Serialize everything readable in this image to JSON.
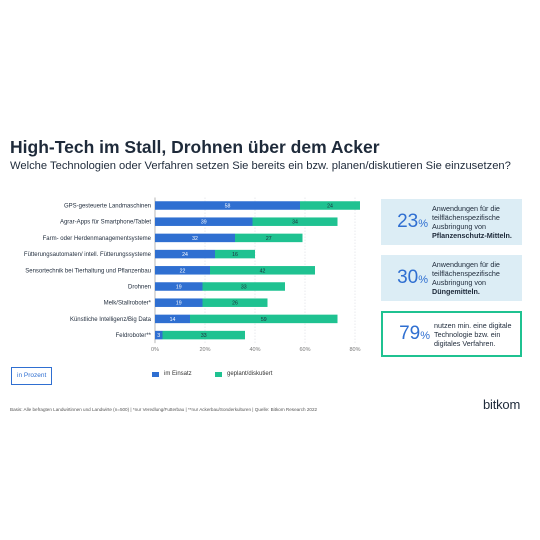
{
  "title": "High-Tech im Stall, Drohnen über dem Acker",
  "subtitle": "Welche Technologien oder Verfahren setzen Sie bereits ein bzw. planen/diskutieren Sie einzusetzen?",
  "unit_label": "in Prozent",
  "colors": {
    "in_einsatz": "#2f6fd1",
    "geplant": "#1fc291",
    "accent_text": "#2f6fd1",
    "box_fill": "#dcedf5"
  },
  "chart_data": {
    "type": "bar",
    "orientation": "horizontal",
    "stacked": true,
    "categories": [
      "GPS-gesteuerte Landmaschinen",
      "Agrar-Apps für Smartphone/Tablet",
      "Farm- oder Herdenmanagementsysteme",
      "Fütterungsautomaten/ intell. Fütterungssysteme",
      "Sensortechnik bei Tierhaltung und Pflanzenbau",
      "Drohnen",
      "Melk/Stallroboter*",
      "Künstliche Intelligenz/Big Data",
      "Feldroboter**"
    ],
    "series": [
      {
        "name": "im Einsatz",
        "color": "#2f6fd1",
        "values": [
          58,
          39,
          32,
          24,
          22,
          19,
          19,
          14,
          3
        ]
      },
      {
        "name": "geplant/diskutiert",
        "color": "#1fc291",
        "values": [
          24,
          34,
          27,
          16,
          42,
          33,
          26,
          59,
          33
        ]
      }
    ],
    "xlim": [
      0,
      80
    ],
    "xticks": [
      "0%",
      "20%",
      "40%",
      "60%",
      "80%"
    ],
    "grid": true,
    "legend_position": "bottom"
  },
  "stats": [
    {
      "value": "23",
      "unit": "%",
      "text": "Anwendungen für die teilflächenspezifische Ausbringung von",
      "bold": "Pflanzenschutz-Mitteln."
    },
    {
      "value": "30",
      "unit": "%",
      "text": "Anwendungen für die teilflächenspezifische Ausbringung von",
      "bold": "Düngemitteln."
    },
    {
      "value": "79",
      "unit": "%",
      "text": "nutzen min. eine digitale Technologie bzw. ein digitales Verfahren.",
      "bold": ""
    }
  ],
  "footer": "Basis: Alle befragten Landwirtinnen und Landwirte (n=500) | *nur Veredlung/Futterbau | **nur Ackerbau/Sonderkulturen | Quelle: Bitkom Research 2022",
  "logo": "bitkom"
}
